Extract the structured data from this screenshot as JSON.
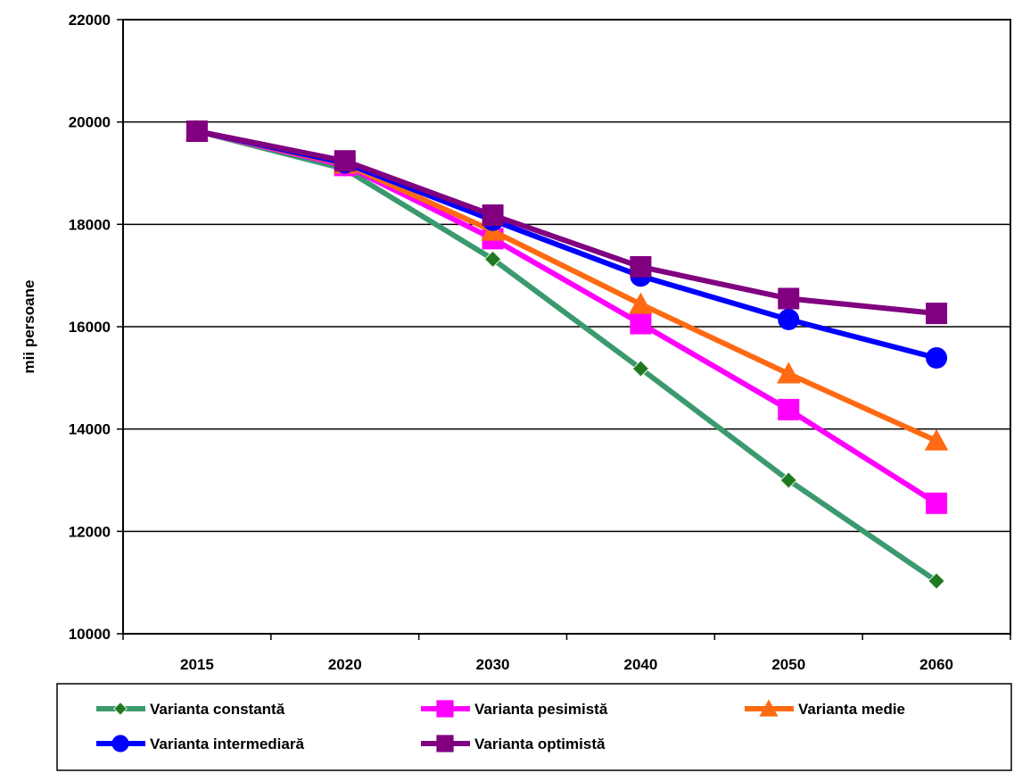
{
  "chart_data": {
    "type": "line",
    "title": "",
    "xlabel": "",
    "ylabel": "mii persoane",
    "categories": [
      "2015",
      "2020",
      "2030",
      "2040",
      "2050",
      "2060"
    ],
    "ylim": [
      10000,
      22000
    ],
    "yticks": [
      10000,
      12000,
      14000,
      16000,
      18000,
      20000,
      22000
    ],
    "grid": true,
    "legend_position": "bottom",
    "series": [
      {
        "name": "Varianta constantă",
        "color": "#3a9a6e",
        "marker_color": "#1f7a1f",
        "marker": "diamond",
        "values": [
          19820,
          19080,
          17320,
          15180,
          13000,
          11030
        ]
      },
      {
        "name": "Varianta pesimistă",
        "color": "#ff00ff",
        "marker": "square",
        "values": [
          19820,
          19150,
          17720,
          16060,
          14380,
          12550
        ]
      },
      {
        "name": "Varianta medie",
        "color": "#ff6a13",
        "marker": "triangle",
        "values": [
          19820,
          19180,
          17870,
          16440,
          15080,
          13770
        ]
      },
      {
        "name": "Varianta intermediară",
        "color": "#0000ff",
        "marker": "circle",
        "values": [
          19820,
          19200,
          18080,
          16990,
          16140,
          15390
        ]
      },
      {
        "name": "Varianta optimistă",
        "color": "#800080",
        "marker": "square",
        "values": [
          19820,
          19240,
          18180,
          17170,
          16550,
          16260
        ]
      }
    ]
  }
}
